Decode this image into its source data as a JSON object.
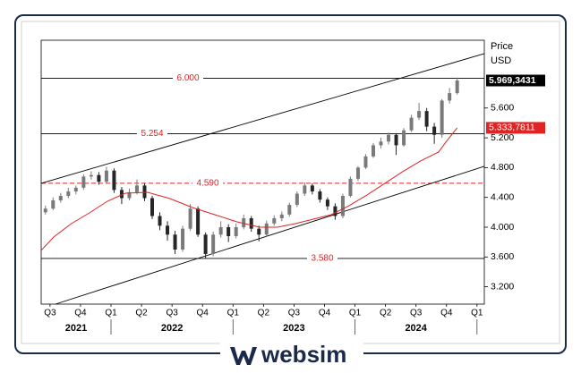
{
  "chart_data": {
    "type": "candlestick",
    "series": [
      {
        "type": "candlestick",
        "up_color": "#7a7a7a",
        "down_color": "#262626",
        "last_label": "5.969,3431",
        "last_label_color": "#000000",
        "x": [
          -0.15,
          0.1,
          0.35,
          0.6,
          0.85,
          1.1,
          1.35,
          1.6,
          1.85,
          2.1,
          2.35,
          2.6,
          2.85,
          3.1,
          3.35,
          3.6,
          3.85,
          4.1,
          4.35,
          4.6,
          4.85,
          5.1,
          5.35,
          5.6,
          5.85,
          6.1,
          6.35,
          6.6,
          6.85,
          7.1,
          7.35,
          7.6,
          7.85,
          8.1,
          8.35,
          8.6,
          8.85,
          9.1,
          9.35,
          9.6,
          9.85,
          10.1,
          10.35,
          10.6,
          10.85,
          11.1,
          11.35,
          11.6,
          11.85,
          12.1,
          12.35,
          12.6,
          12.85,
          13.1,
          13.35
        ],
        "open": [
          4200,
          4250,
          4360,
          4420,
          4480,
          4530,
          4680,
          4700,
          4610,
          4760,
          4500,
          4390,
          4470,
          4560,
          4390,
          4150,
          4020,
          3900,
          3700,
          3980,
          4250,
          3900,
          3640,
          3900,
          4000,
          3880,
          4000,
          4120,
          3980,
          3900,
          4050,
          4120,
          4170,
          4300,
          4450,
          4560,
          4480,
          4370,
          4280,
          4150,
          4420,
          4650,
          4800,
          4950,
          5100,
          5150,
          5240,
          5100,
          5300,
          5470,
          5560,
          5350,
          5240,
          5700,
          5800
        ],
        "high": [
          4290,
          4400,
          4460,
          4530,
          4560,
          4710,
          4750,
          4740,
          4810,
          4790,
          4540,
          4520,
          4640,
          4590,
          4420,
          4200,
          4080,
          3950,
          4020,
          4310,
          4280,
          3930,
          3940,
          4080,
          4040,
          4050,
          4170,
          4150,
          4020,
          4090,
          4160,
          4210,
          4330,
          4480,
          4600,
          4590,
          4510,
          4400,
          4320,
          4450,
          4680,
          4820,
          4980,
          5130,
          5200,
          5270,
          5260,
          5330,
          5510,
          5670,
          5600,
          5400,
          5720,
          5870,
          6010
        ],
        "low": [
          4170,
          4230,
          4330,
          4390,
          4440,
          4500,
          4640,
          4570,
          4590,
          4460,
          4310,
          4360,
          4440,
          4350,
          4110,
          3960,
          3820,
          3640,
          3670,
          3950,
          3870,
          3580,
          3610,
          3860,
          3800,
          3850,
          3970,
          3940,
          3810,
          3870,
          4020,
          4080,
          4140,
          4270,
          4420,
          4440,
          4330,
          4230,
          4100,
          4120,
          4400,
          4620,
          4780,
          4930,
          5060,
          5110,
          4970,
          5080,
          5280,
          5440,
          5290,
          5120,
          5200,
          5660,
          5780
        ],
        "close": [
          4250,
          4360,
          4420,
          4480,
          4530,
          4680,
          4700,
          4610,
          4760,
          4500,
          4390,
          4470,
          4560,
          4390,
          4150,
          4020,
          3900,
          3700,
          3980,
          4250,
          3900,
          3640,
          3900,
          4000,
          3880,
          4000,
          4120,
          3980,
          3900,
          4050,
          4120,
          4170,
          4300,
          4450,
          4560,
          4480,
          4370,
          4280,
          4150,
          4420,
          4650,
          4800,
          4950,
          5100,
          5150,
          5240,
          5100,
          5300,
          5470,
          5560,
          5350,
          5240,
          5700,
          5800,
          5969.3431
        ]
      },
      {
        "type": "line",
        "color": "#e02424",
        "last_label": "5.333,7811",
        "last_label_color": "#e02424",
        "x": [
          -0.29,
          0.12,
          0.7,
          1.29,
          1.88,
          2.47,
          3.2,
          3.93,
          4.67,
          5.4,
          6.13,
          6.87,
          7.46,
          8.04,
          8.63,
          9.22,
          9.8,
          10.39,
          10.98,
          11.56,
          12.15,
          12.74,
          13.0,
          13.35
        ],
        "values": [
          3688,
          3868,
          4048,
          4192,
          4348,
          4456,
          4468,
          4384,
          4264,
          4168,
          4072,
          4000,
          4000,
          4048,
          4108,
          4168,
          4288,
          4432,
          4589,
          4745,
          4889,
          5009,
          5153,
          5333.7811
        ]
      }
    ],
    "trendlines": [
      {
        "x": [
          -0.29,
          14.24
        ],
        "values": [
          4589,
          6330
        ],
        "color": "#000000"
      },
      {
        "x": [
          0.18,
          14.24
        ],
        "values": [
          2967,
          4817
        ],
        "color": "#000000"
      }
    ],
    "levels": [
      {
        "value": 6000,
        "label": "6.000",
        "color": "#000000",
        "label_color": "#e02424",
        "dashed": false
      },
      {
        "value": 5254,
        "label": "5.254",
        "color": "#000000",
        "label_color": "#e02424",
        "dashed": false
      },
      {
        "value": 4590,
        "label": "4.590",
        "color": "#e02424",
        "label_color": "#e02424",
        "dashed": true
      },
      {
        "value": 3580,
        "label": "3.580",
        "color": "#000000",
        "label_color": "#e02424",
        "dashed": false
      }
    ],
    "xlim": [
      -0.29,
      14.24
    ],
    "xticks": [
      {
        "value": 0,
        "label": "Q3"
      },
      {
        "value": 1,
        "label": "Q4"
      },
      {
        "value": 2,
        "label": "Q1"
      },
      {
        "value": 3,
        "label": "Q2"
      },
      {
        "value": 4,
        "label": "Q3"
      },
      {
        "value": 5,
        "label": "Q4"
      },
      {
        "value": 6,
        "label": "Q1"
      },
      {
        "value": 7,
        "label": "Q2"
      },
      {
        "value": 8,
        "label": "Q3"
      },
      {
        "value": 9,
        "label": "Q4"
      },
      {
        "value": 10,
        "label": "Q1"
      },
      {
        "value": 11,
        "label": "Q2"
      },
      {
        "value": 12,
        "label": "Q3"
      },
      {
        "value": 13,
        "label": "Q4"
      },
      {
        "value": 14,
        "label": "Q1"
      }
    ],
    "year_ticks": [
      2,
      6,
      10,
      14
    ],
    "years": [
      "2021",
      "2022",
      "2023",
      "2024"
    ],
    "ylim": [
      2967,
      6510
    ],
    "yticks": [
      {
        "value": 3200,
        "label": "3.200"
      },
      {
        "value": 3600,
        "label": "3.600"
      },
      {
        "value": 4000,
        "label": "4.000"
      },
      {
        "value": 4400,
        "label": "4.400"
      },
      {
        "value": 4800,
        "label": "4.800"
      },
      {
        "value": 5200,
        "label": "5.200"
      },
      {
        "value": 5600,
        "label": "5.600"
      }
    ],
    "y_label": "Price",
    "y_unit": "USD",
    "y_axis_side": "right",
    "logo": "websim"
  }
}
